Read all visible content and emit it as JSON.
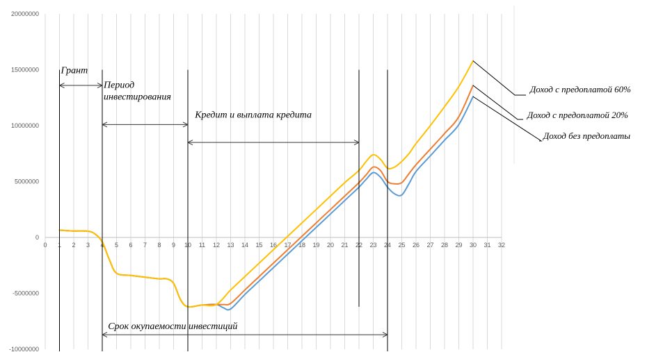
{
  "chart_data": {
    "type": "line",
    "xlim": [
      0,
      32
    ],
    "ylim": [
      -10000000,
      20000000
    ],
    "x_ticks": [
      "0",
      "1",
      "2",
      "3",
      "4",
      "5",
      "6",
      "7",
      "8",
      "9",
      "10",
      "11",
      "12",
      "13",
      "14",
      "15",
      "16",
      "17",
      "18",
      "19",
      "20",
      "21",
      "22",
      "23",
      "24",
      "25",
      "26",
      "27",
      "28",
      "29",
      "30",
      "31",
      "32"
    ],
    "y_ticks": [
      "20000000",
      "15000000",
      "10000000",
      "5000000",
      "0",
      "-5000000",
      "-10000000"
    ],
    "grid": "vertical",
    "series": [
      {
        "name": "Доход без предоплаты",
        "color": "#5b9bd5",
        "points": [
          [
            1,
            650000
          ],
          [
            2,
            580000
          ],
          [
            3,
            560000
          ],
          [
            3.5,
            300000
          ],
          [
            4,
            -400000
          ],
          [
            4.5,
            -2000000
          ],
          [
            5,
            -3200000
          ],
          [
            6,
            -3400000
          ],
          [
            7,
            -3550000
          ],
          [
            8,
            -3700000
          ],
          [
            8.5,
            -3700000
          ],
          [
            9,
            -4100000
          ],
          [
            9.5,
            -5600000
          ],
          [
            10,
            -6200000
          ],
          [
            11,
            -6050000
          ],
          [
            12,
            -6000000
          ],
          [
            12.5,
            -6300000
          ],
          [
            13,
            -6400000
          ],
          [
            14,
            -5100000
          ],
          [
            15,
            -3900000
          ],
          [
            16,
            -2700000
          ],
          [
            17,
            -1500000
          ],
          [
            18,
            -300000
          ],
          [
            19,
            900000
          ],
          [
            20,
            2100000
          ],
          [
            21,
            3300000
          ],
          [
            22,
            4500000
          ],
          [
            22.5,
            5200000
          ],
          [
            23,
            5800000
          ],
          [
            23.5,
            5400000
          ],
          [
            24,
            4500000
          ],
          [
            24.5,
            3900000
          ],
          [
            25,
            3800000
          ],
          [
            25.5,
            4800000
          ],
          [
            26,
            5900000
          ],
          [
            27,
            7300000
          ],
          [
            28,
            8700000
          ],
          [
            29,
            10100000
          ],
          [
            30,
            12600000
          ]
        ]
      },
      {
        "name": "Доход с предоплатой 20%",
        "color": "#ed7d31",
        "points": [
          [
            1,
            650000
          ],
          [
            2,
            580000
          ],
          [
            3,
            560000
          ],
          [
            3.5,
            300000
          ],
          [
            4,
            -400000
          ],
          [
            4.5,
            -2000000
          ],
          [
            5,
            -3200000
          ],
          [
            6,
            -3400000
          ],
          [
            7,
            -3550000
          ],
          [
            8,
            -3700000
          ],
          [
            8.5,
            -3700000
          ],
          [
            9,
            -4100000
          ],
          [
            9.5,
            -5600000
          ],
          [
            10,
            -6200000
          ],
          [
            11,
            -6050000
          ],
          [
            12,
            -6000000
          ],
          [
            12.5,
            -6000000
          ],
          [
            13,
            -5900000
          ],
          [
            14,
            -4700000
          ],
          [
            15,
            -3500000
          ],
          [
            16,
            -2300000
          ],
          [
            17,
            -1100000
          ],
          [
            18,
            100000
          ],
          [
            19,
            1300000
          ],
          [
            20,
            2500000
          ],
          [
            21,
            3700000
          ],
          [
            22,
            4900000
          ],
          [
            22.5,
            5600000
          ],
          [
            23,
            6300000
          ],
          [
            23.5,
            6000000
          ],
          [
            24,
            5000000
          ],
          [
            24.5,
            4800000
          ],
          [
            25,
            4900000
          ],
          [
            25.5,
            5700000
          ],
          [
            26,
            6500000
          ],
          [
            27,
            7900000
          ],
          [
            28,
            9300000
          ],
          [
            29,
            10800000
          ],
          [
            30,
            13600000
          ]
        ]
      },
      {
        "name": "Доход с предоплатой 60%",
        "color": "#ffc000",
        "points": [
          [
            1,
            650000
          ],
          [
            2,
            580000
          ],
          [
            3,
            560000
          ],
          [
            3.5,
            300000
          ],
          [
            4,
            -400000
          ],
          [
            4.5,
            -2000000
          ],
          [
            5,
            -3200000
          ],
          [
            6,
            -3400000
          ],
          [
            7,
            -3550000
          ],
          [
            8,
            -3700000
          ],
          [
            8.5,
            -3700000
          ],
          [
            9,
            -4100000
          ],
          [
            9.5,
            -5600000
          ],
          [
            10,
            -6200000
          ],
          [
            11,
            -6050000
          ],
          [
            12,
            -6000000
          ],
          [
            13,
            -4700000
          ],
          [
            14,
            -3500000
          ],
          [
            15,
            -2300000
          ],
          [
            16,
            -1100000
          ],
          [
            17,
            100000
          ],
          [
            18,
            1300000
          ],
          [
            19,
            2500000
          ],
          [
            20,
            3700000
          ],
          [
            21,
            4900000
          ],
          [
            22,
            6000000
          ],
          [
            22.5,
            6800000
          ],
          [
            23,
            7400000
          ],
          [
            23.5,
            7000000
          ],
          [
            24,
            6200000
          ],
          [
            24.5,
            6300000
          ],
          [
            25,
            6800000
          ],
          [
            25.5,
            7500000
          ],
          [
            26,
            8400000
          ],
          [
            27,
            10000000
          ],
          [
            28,
            11700000
          ],
          [
            29,
            13500000
          ],
          [
            30,
            15800000
          ]
        ]
      }
    ],
    "vlines": [
      {
        "x": 1,
        "ymax": 15000000,
        "ymin": -10200000
      },
      {
        "x": 4,
        "ymax": 15000000,
        "ymin": -10200000
      },
      {
        "x": 10,
        "ymax": 15000000,
        "ymin": -10200000
      },
      {
        "x": 22,
        "ymax": 15000000,
        "ymin": -6200000
      },
      {
        "x": 24,
        "ymax": 15000000,
        "ymin": -10200000
      }
    ],
    "spans": [
      {
        "x1": 1,
        "x2": 4,
        "y": 13600000,
        "label": "Грант",
        "label_x": 1.1,
        "label_y": 14700000
      },
      {
        "x1": 4,
        "x2": 10,
        "y": 10100000,
        "label_lines": [
          "Период",
          "инвестирования"
        ],
        "label_x": 4.1,
        "label_y": 13400000
      },
      {
        "x1": 10,
        "x2": 22,
        "y": 8500000,
        "label": "Кредит и выплата кредита",
        "label_x": 10.5,
        "label_y": 10700000
      },
      {
        "x1": 4,
        "x2": 24,
        "y": -8700000,
        "label": "Срок окупаемости инвестиций",
        "label_x": 4.4,
        "label_y": -8200000
      }
    ],
    "legend": [
      {
        "name": "Доход с предоплатой 60%",
        "series": 2
      },
      {
        "name": "Доход с предоплатой 20%",
        "series": 1
      },
      {
        "name": "Доход без предоплаты",
        "series": 0
      }
    ]
  }
}
